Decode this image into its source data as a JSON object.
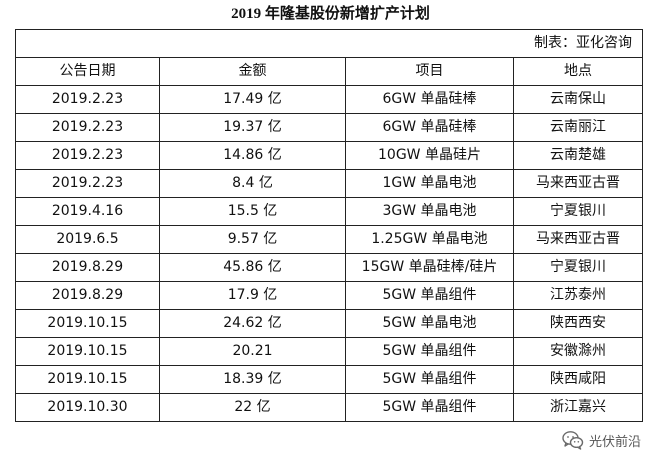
{
  "title": "2019 年隆基股份新增扩产计划",
  "source": "制表：亚化咨询",
  "columns": [
    "公告日期",
    "金额",
    "项目",
    "地点"
  ],
  "rows": [
    {
      "date": "2019.2.23",
      "amount": "17.49 亿",
      "project": "6GW 单晶硅棒",
      "location": "云南保山"
    },
    {
      "date": "2019.2.23",
      "amount": "19.37 亿",
      "project": "6GW 单晶硅棒",
      "location": "云南丽江"
    },
    {
      "date": "2019.2.23",
      "amount": "14.86 亿",
      "project": "10GW 单晶硅片",
      "location": "云南楚雄"
    },
    {
      "date": "2019.2.23",
      "amount": "8.4 亿",
      "project": "1GW 单晶电池",
      "location": "马来西亚古晋"
    },
    {
      "date": "2019.4.16",
      "amount": "15.5 亿",
      "project": "3GW 单晶电池",
      "location": "宁夏银川"
    },
    {
      "date": "2019.6.5",
      "amount": "9.57 亿",
      "project": "1.25GW 单晶电池",
      "location": "马来西亚古晋"
    },
    {
      "date": "2019.8.29",
      "amount": "45.86 亿",
      "project": "15GW 单晶硅棒/硅片",
      "location": "宁夏银川"
    },
    {
      "date": "2019.8.29",
      "amount": "17.9 亿",
      "project": "5GW 单晶组件",
      "location": "江苏泰州"
    },
    {
      "date": "2019.10.15",
      "amount": "24.62 亿",
      "project": "5GW 单晶电池",
      "location": "陕西西安"
    },
    {
      "date": "2019.10.15",
      "amount": "20.21",
      "project": "5GW 单晶组件",
      "location": "安徽滁州"
    },
    {
      "date": "2019.10.15",
      "amount": "18.39 亿",
      "project": "5GW 单晶组件",
      "location": "陕西咸阳"
    },
    {
      "date": "2019.10.30",
      "amount": "22 亿",
      "project": "5GW 单晶组件",
      "location": "浙江嘉兴"
    }
  ],
  "watermark": {
    "text": "光伏前沿",
    "icon": "wechat-icon"
  }
}
